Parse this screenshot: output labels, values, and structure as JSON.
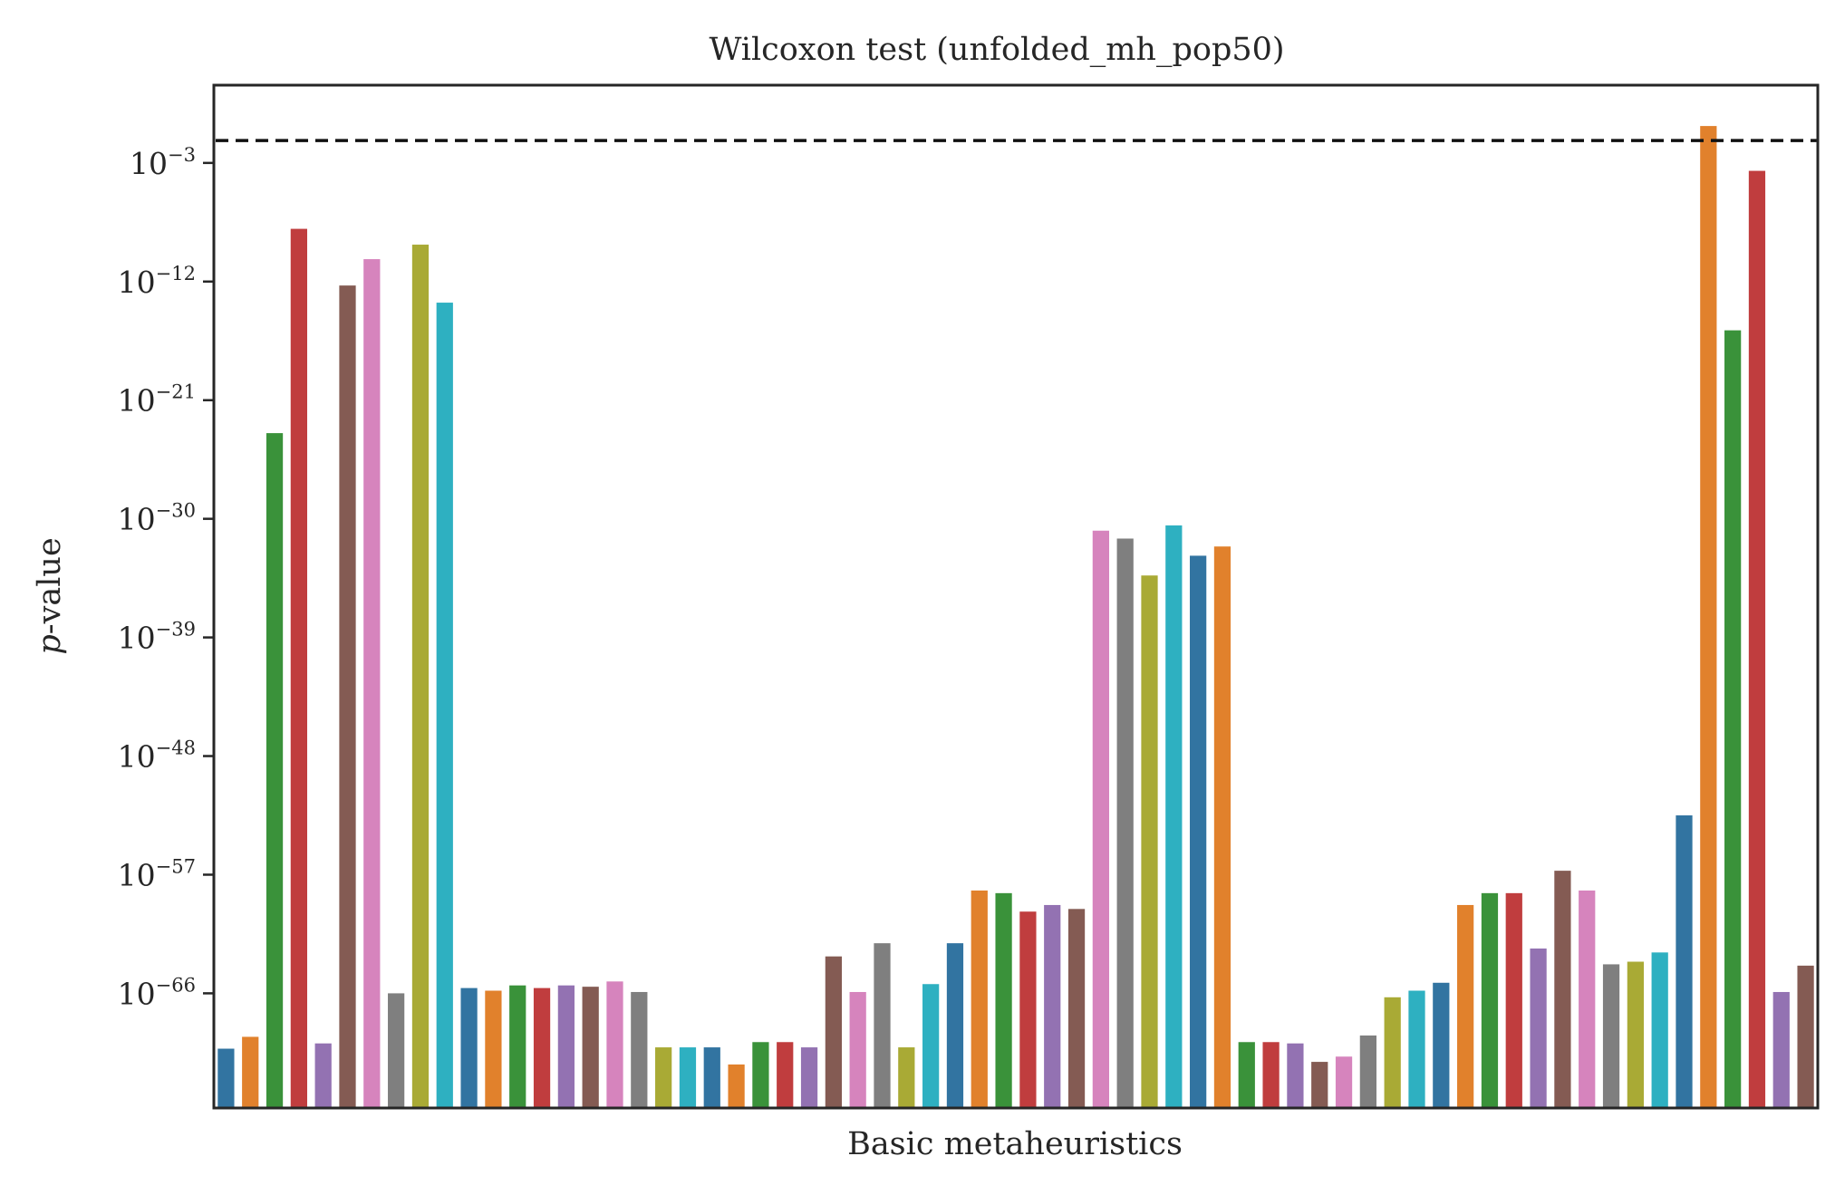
{
  "chart_data": {
    "type": "bar",
    "title": "Wilcoxon test (unfolded_mh_pop50)",
    "xlabel": "Basic metaheuristics",
    "ylabel": "p-value",
    "yscale": "log",
    "ylim_exponent": [
      -74.7,
      2.9
    ],
    "yticks": [
      {
        "base": "10",
        "exp": "−3",
        "value": -3
      },
      {
        "base": "10",
        "exp": "−12",
        "value": -12
      },
      {
        "base": "10",
        "exp": "−21",
        "value": -21
      },
      {
        "base": "10",
        "exp": "−30",
        "value": -30
      },
      {
        "base": "10",
        "exp": "−39",
        "value": -39
      },
      {
        "base": "10",
        "exp": "−48",
        "value": -48
      },
      {
        "base": "10",
        "exp": "−57",
        "value": -57
      },
      {
        "base": "10",
        "exp": "−66",
        "value": -66
      }
    ],
    "threshold_log10": -1.3,
    "grid": false,
    "palette": [
      "#3274a1",
      "#e1812c",
      "#3a923a",
      "#c03d3e",
      "#9372b2",
      "#845b53",
      "#d684bd",
      "#7f7f7f",
      "#a9aa35",
      "#2eb0c1"
    ],
    "values_log10": [
      -70.2,
      -69.3,
      -23.5,
      -8.0,
      -69.8,
      -12.3,
      -10.3,
      -66.0,
      -9.2,
      -13.6,
      -65.6,
      -65.8,
      -65.4,
      -65.6,
      -65.4,
      -65.5,
      -65.1,
      -65.9,
      -70.1,
      -70.1,
      -70.1,
      -71.4,
      -69.7,
      -69.7,
      -70.1,
      -63.2,
      -65.9,
      -62.2,
      -70.1,
      -65.3,
      -62.2,
      -58.2,
      -58.4,
      -59.8,
      -59.3,
      -59.6,
      -30.9,
      -31.5,
      -34.3,
      -30.5,
      -32.8,
      -32.1,
      -69.7,
      -69.7,
      -69.8,
      -71.2,
      -70.8,
      -69.2,
      -66.3,
      -65.8,
      -65.2,
      -59.3,
      -58.4,
      -58.4,
      -62.6,
      -56.7,
      -58.2,
      -63.8,
      -63.6,
      -62.9,
      -52.5,
      -0.2,
      -15.7,
      -3.6,
      -65.9,
      -63.9
    ]
  }
}
